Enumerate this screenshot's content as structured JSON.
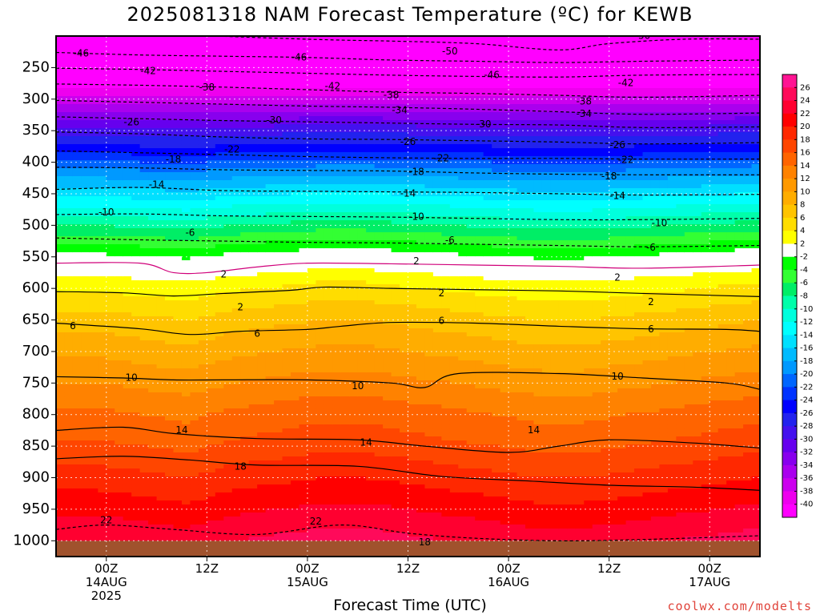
{
  "title": "2025081318 NAM Forecast Temperature (ºC) for KEWB",
  "credit": "coolwx.com/modelts",
  "chart_data": {
    "type": "heatmap",
    "title": "2025081318 NAM Forecast Temperature (ºC) for KEWB",
    "xlabel": "Forecast Time (UTC)",
    "ylabel": "",
    "x_unit": "hours since 2025-08-13 18Z",
    "xlim": [
      0,
      84
    ],
    "ylim_hPa": [
      1025,
      200
    ],
    "y_ticks": [
      250,
      300,
      350,
      400,
      450,
      500,
      550,
      600,
      650,
      700,
      750,
      800,
      850,
      900,
      950,
      1000
    ],
    "x_ticks": [
      {
        "h": 6,
        "lines": [
          "00Z",
          "14AUG",
          "2025"
        ]
      },
      {
        "h": 18,
        "lines": [
          "12Z"
        ]
      },
      {
        "h": 30,
        "lines": [
          "00Z",
          "15AUG"
        ]
      },
      {
        "h": 42,
        "lines": [
          "12Z"
        ]
      },
      {
        "h": 54,
        "lines": [
          "00Z",
          "16AUG"
        ]
      },
      {
        "h": 66,
        "lines": [
          "12Z"
        ]
      },
      {
        "h": 78,
        "lines": [
          "00Z",
          "17AUG"
        ]
      }
    ],
    "colorbar": {
      "labels": [
        26,
        24,
        22,
        20,
        18,
        16,
        14,
        12,
        10,
        8,
        6,
        4,
        2,
        -2,
        -4,
        -6,
        -8,
        -10,
        -12,
        -14,
        -16,
        -18,
        -20,
        -22,
        -24,
        -26,
        -28,
        -30,
        -32,
        -34,
        -36,
        -38,
        -40
      ],
      "colors": [
        "#ff1493",
        "#ff0a5a",
        "#ff0030",
        "#ff0000",
        "#ff2800",
        "#ff4600",
        "#ff6400",
        "#ff8200",
        "#ff9900",
        "#ffad00",
        "#ffc400",
        "#ffdd00",
        "#ffff00",
        "#ffffff",
        "#00ff00",
        "#33ff33",
        "#00ee66",
        "#00ffaa",
        "#00ffdd",
        "#00ffff",
        "#00e0ff",
        "#00bbff",
        "#0099ff",
        "#0066ff",
        "#0033ff",
        "#0000ff",
        "#2222ee",
        "#4411ee",
        "#6600ee",
        "#8800ee",
        "#aa00ee",
        "#cc00ee",
        "#ee00ee",
        "#ff00ff"
      ]
    },
    "isotherms": [
      {
        "value": -50,
        "solid": false,
        "pts": [
          [
            0,
            185
          ],
          [
            12,
            196
          ],
          [
            30,
            205
          ],
          [
            40,
            208
          ],
          [
            50,
            212
          ],
          [
            60,
            222
          ],
          [
            66,
            212
          ],
          [
            75,
            205
          ],
          [
            84,
            205
          ]
        ]
      },
      {
        "value": -46,
        "solid": false,
        "pts": [
          [
            0,
            226
          ],
          [
            10,
            230
          ],
          [
            20,
            232
          ],
          [
            30,
            234
          ],
          [
            40,
            238
          ],
          [
            50,
            240
          ],
          [
            60,
            242
          ],
          [
            70,
            240
          ],
          [
            84,
            238
          ]
        ]
      },
      {
        "value": -42,
        "solid": false,
        "pts": [
          [
            0,
            251
          ],
          [
            10,
            253
          ],
          [
            20,
            256
          ],
          [
            30,
            259
          ],
          [
            40,
            262
          ],
          [
            50,
            264
          ],
          [
            60,
            265
          ],
          [
            70,
            262
          ],
          [
            84,
            261
          ]
        ]
      },
      {
        "value": -38,
        "solid": false,
        "pts": [
          [
            0,
            276
          ],
          [
            10,
            278
          ],
          [
            20,
            281
          ],
          [
            30,
            285
          ],
          [
            40,
            289
          ],
          [
            50,
            291
          ],
          [
            60,
            294
          ],
          [
            70,
            297
          ],
          [
            84,
            294
          ]
        ]
      },
      {
        "value": -34,
        "solid": false,
        "pts": [
          [
            0,
            302
          ],
          [
            10,
            305
          ],
          [
            20,
            308
          ],
          [
            30,
            311
          ],
          [
            40,
            313
          ],
          [
            50,
            316
          ],
          [
            60,
            320
          ],
          [
            70,
            324
          ],
          [
            84,
            322
          ]
        ]
      },
      {
        "value": -30,
        "solid": false,
        "pts": [
          [
            0,
            328
          ],
          [
            10,
            331
          ],
          [
            20,
            334
          ],
          [
            30,
            336
          ],
          [
            40,
            338
          ],
          [
            50,
            340
          ],
          [
            60,
            341
          ],
          [
            70,
            345
          ],
          [
            84,
            344
          ]
        ]
      },
      {
        "value": -26,
        "solid": false,
        "pts": [
          [
            0,
            352
          ],
          [
            10,
            355
          ],
          [
            20,
            360
          ],
          [
            30,
            363
          ],
          [
            40,
            364
          ],
          [
            50,
            366
          ],
          [
            60,
            368
          ],
          [
            70,
            371
          ],
          [
            84,
            369
          ]
        ]
      },
      {
        "value": -22,
        "solid": false,
        "pts": [
          [
            0,
            382
          ],
          [
            10,
            385
          ],
          [
            20,
            388
          ],
          [
            30,
            391
          ],
          [
            40,
            393
          ],
          [
            50,
            394
          ],
          [
            60,
            394
          ],
          [
            70,
            395
          ],
          [
            84,
            395
          ]
        ]
      },
      {
        "value": -18,
        "solid": false,
        "pts": [
          [
            0,
            408
          ],
          [
            10,
            409
          ],
          [
            20,
            412
          ],
          [
            30,
            413
          ],
          [
            40,
            414
          ],
          [
            50,
            417
          ],
          [
            60,
            419
          ],
          [
            70,
            420
          ],
          [
            84,
            420
          ]
        ]
      },
      {
        "value": -14,
        "solid": false,
        "pts": [
          [
            0,
            443
          ],
          [
            10,
            440
          ],
          [
            20,
            445
          ],
          [
            30,
            446
          ],
          [
            40,
            447
          ],
          [
            50,
            448
          ],
          [
            60,
            450
          ],
          [
            70,
            452
          ],
          [
            84,
            451
          ]
        ]
      },
      {
        "value": -10,
        "solid": false,
        "pts": [
          [
            0,
            483
          ],
          [
            10,
            482
          ],
          [
            20,
            485
          ],
          [
            30,
            486
          ],
          [
            40,
            487
          ],
          [
            50,
            489
          ],
          [
            60,
            491
          ],
          [
            70,
            491
          ],
          [
            84,
            489
          ]
        ]
      },
      {
        "value": -6,
        "solid": false,
        "pts": [
          [
            0,
            520
          ],
          [
            10,
            523
          ],
          [
            20,
            525
          ],
          [
            30,
            527
          ],
          [
            40,
            528
          ],
          [
            50,
            530
          ],
          [
            60,
            532
          ],
          [
            70,
            534
          ],
          [
            84,
            532
          ]
        ]
      },
      {
        "value": -2,
        "solid": false,
        "pts": [
          [
            0,
            560
          ],
          [
            10,
            560
          ],
          [
            14,
            575
          ],
          [
            18,
            575
          ],
          [
            24,
            566
          ],
          [
            30,
            560
          ],
          [
            40,
            561
          ],
          [
            50,
            563
          ],
          [
            60,
            565
          ],
          [
            70,
            568
          ],
          [
            84,
            563
          ]
        ]
      },
      {
        "value": 2,
        "solid": true,
        "pts": [
          [
            0,
            605
          ],
          [
            8,
            607
          ],
          [
            14,
            612
          ],
          [
            20,
            608
          ],
          [
            28,
            603
          ],
          [
            32,
            598
          ],
          [
            40,
            600
          ],
          [
            50,
            602
          ],
          [
            60,
            604
          ],
          [
            70,
            608
          ],
          [
            84,
            613
          ]
        ]
      },
      {
        "value": 6,
        "solid": true,
        "pts": [
          [
            0,
            655
          ],
          [
            10,
            664
          ],
          [
            16,
            673
          ],
          [
            22,
            668
          ],
          [
            30,
            665
          ],
          [
            34,
            660
          ],
          [
            40,
            654
          ],
          [
            50,
            655
          ],
          [
            60,
            660
          ],
          [
            70,
            664
          ],
          [
            80,
            665
          ],
          [
            84,
            668
          ]
        ]
      },
      {
        "value": 10,
        "solid": true,
        "pts": [
          [
            0,
            740
          ],
          [
            8,
            742
          ],
          [
            14,
            745
          ],
          [
            20,
            745
          ],
          [
            30,
            745
          ],
          [
            40,
            750
          ],
          [
            44,
            757
          ],
          [
            48,
            735
          ],
          [
            60,
            735
          ],
          [
            70,
            742
          ],
          [
            80,
            750
          ],
          [
            84,
            760
          ]
        ]
      },
      {
        "value": 14,
        "solid": true,
        "pts": [
          [
            0,
            825
          ],
          [
            8,
            820
          ],
          [
            14,
            830
          ],
          [
            24,
            838
          ],
          [
            36,
            840
          ],
          [
            44,
            850
          ],
          [
            54,
            860
          ],
          [
            60,
            850
          ],
          [
            66,
            840
          ],
          [
            76,
            845
          ],
          [
            84,
            853
          ]
        ]
      },
      {
        "value": 18,
        "solid": true,
        "pts": [
          [
            0,
            870
          ],
          [
            8,
            866
          ],
          [
            16,
            872
          ],
          [
            24,
            880
          ],
          [
            36,
            882
          ],
          [
            46,
            898
          ],
          [
            56,
            905
          ],
          [
            66,
            912
          ],
          [
            76,
            915
          ],
          [
            84,
            920
          ]
        ]
      },
      {
        "value": 22,
        "solid": false,
        "pts": [
          [
            0,
            982
          ],
          [
            6,
            975
          ],
          [
            14,
            982
          ],
          [
            24,
            990
          ],
          [
            34,
            975
          ],
          [
            42,
            988
          ],
          [
            50,
            996
          ],
          [
            60,
            1000
          ],
          [
            70,
            998
          ],
          [
            84,
            992
          ]
        ]
      }
    ],
    "contour_labels": [
      {
        "text": "-50",
        "h": 70,
        "p": 200
      },
      {
        "text": "-46",
        "h": 3,
        "p": 228
      },
      {
        "text": "-46",
        "h": 29,
        "p": 234
      },
      {
        "text": "-50",
        "h": 47,
        "p": 225
      },
      {
        "text": "-46",
        "h": 52,
        "p": 262
      },
      {
        "text": "-42",
        "h": 11,
        "p": 256
      },
      {
        "text": "-42",
        "h": 33,
        "p": 280
      },
      {
        "text": "-42",
        "h": 68,
        "p": 275
      },
      {
        "text": "-38",
        "h": 18,
        "p": 282
      },
      {
        "text": "-38",
        "h": 40,
        "p": 294
      },
      {
        "text": "-38",
        "h": 63,
        "p": 304
      },
      {
        "text": "-34",
        "h": 41,
        "p": 318
      },
      {
        "text": "-34",
        "h": 63,
        "p": 324
      },
      {
        "text": "-30",
        "h": 26,
        "p": 334
      },
      {
        "text": "-30",
        "h": 51,
        "p": 340
      },
      {
        "text": "-26",
        "h": 9,
        "p": 337
      },
      {
        "text": "-26",
        "h": 42,
        "p": 368
      },
      {
        "text": "-26",
        "h": 67,
        "p": 373
      },
      {
        "text": "-22",
        "h": 21,
        "p": 380
      },
      {
        "text": "-22",
        "h": 46,
        "p": 394
      },
      {
        "text": "-22",
        "h": 68,
        "p": 397
      },
      {
        "text": "-18",
        "h": 14,
        "p": 396
      },
      {
        "text": "-18",
        "h": 43,
        "p": 416
      },
      {
        "text": "-18",
        "h": 66,
        "p": 423
      },
      {
        "text": "-14",
        "h": 12,
        "p": 436
      },
      {
        "text": "-14",
        "h": 42,
        "p": 450
      },
      {
        "text": "-14",
        "h": 67,
        "p": 454
      },
      {
        "text": "-10",
        "h": 6,
        "p": 480
      },
      {
        "text": "-10",
        "h": 43,
        "p": 487
      },
      {
        "text": "-10",
        "h": 72,
        "p": 497
      },
      {
        "text": "-6",
        "h": 16,
        "p": 512
      },
      {
        "text": "-6",
        "h": 47,
        "p": 524
      },
      {
        "text": "-6",
        "h": 71,
        "p": 536
      },
      {
        "text": "2",
        "h": 20,
        "p": 578
      },
      {
        "text": "2",
        "h": 43,
        "p": 557
      },
      {
        "text": "2",
        "h": 67,
        "p": 583
      },
      {
        "text": "2",
        "h": 22,
        "p": 630
      },
      {
        "text": "2",
        "h": 46,
        "p": 608
      },
      {
        "text": "2",
        "h": 71,
        "p": 622
      },
      {
        "text": "6",
        "h": 2,
        "p": 660
      },
      {
        "text": "6",
        "h": 24,
        "p": 672
      },
      {
        "text": "6",
        "h": 46,
        "p": 652
      },
      {
        "text": "6",
        "h": 71,
        "p": 665
      },
      {
        "text": "10",
        "h": 9,
        "p": 742
      },
      {
        "text": "10",
        "h": 36,
        "p": 755
      },
      {
        "text": "10",
        "h": 67,
        "p": 740
      },
      {
        "text": "14",
        "h": 15,
        "p": 825
      },
      {
        "text": "14",
        "h": 37,
        "p": 845
      },
      {
        "text": "14",
        "h": 57,
        "p": 825
      },
      {
        "text": "18",
        "h": 22,
        "p": 883
      },
      {
        "text": "18",
        "h": 44,
        "p": 1003
      },
      {
        "text": "22",
        "h": 6,
        "p": 968
      },
      {
        "text": "22",
        "h": 31,
        "p": 970
      }
    ],
    "temperature_field": {
      "pressure_levels_hPa": [
        200,
        230,
        260,
        290,
        320,
        350,
        380,
        410,
        440,
        470,
        500,
        530,
        560,
        590,
        620,
        650,
        680,
        710,
        740,
        770,
        800,
        840,
        880,
        920,
        960,
        1000,
        1025
      ],
      "mean_temp_C": [
        -56,
        -48,
        -44,
        -39,
        -34,
        -29,
        -25,
        -20,
        -16,
        -12,
        -8,
        -4,
        0,
        3,
        5,
        7,
        8.5,
        10,
        11.5,
        13,
        14.5,
        16,
        18,
        20,
        22,
        24,
        25
      ],
      "time_anomaly_C": [
        0,
        0,
        -0.5,
        -1,
        0,
        0.5,
        1,
        1,
        0.5,
        0,
        -0.5,
        -1,
        -1,
        -0.5,
        0,
        0.5,
        1
      ]
    },
    "ground_fill_from_hPa": 1000
  }
}
